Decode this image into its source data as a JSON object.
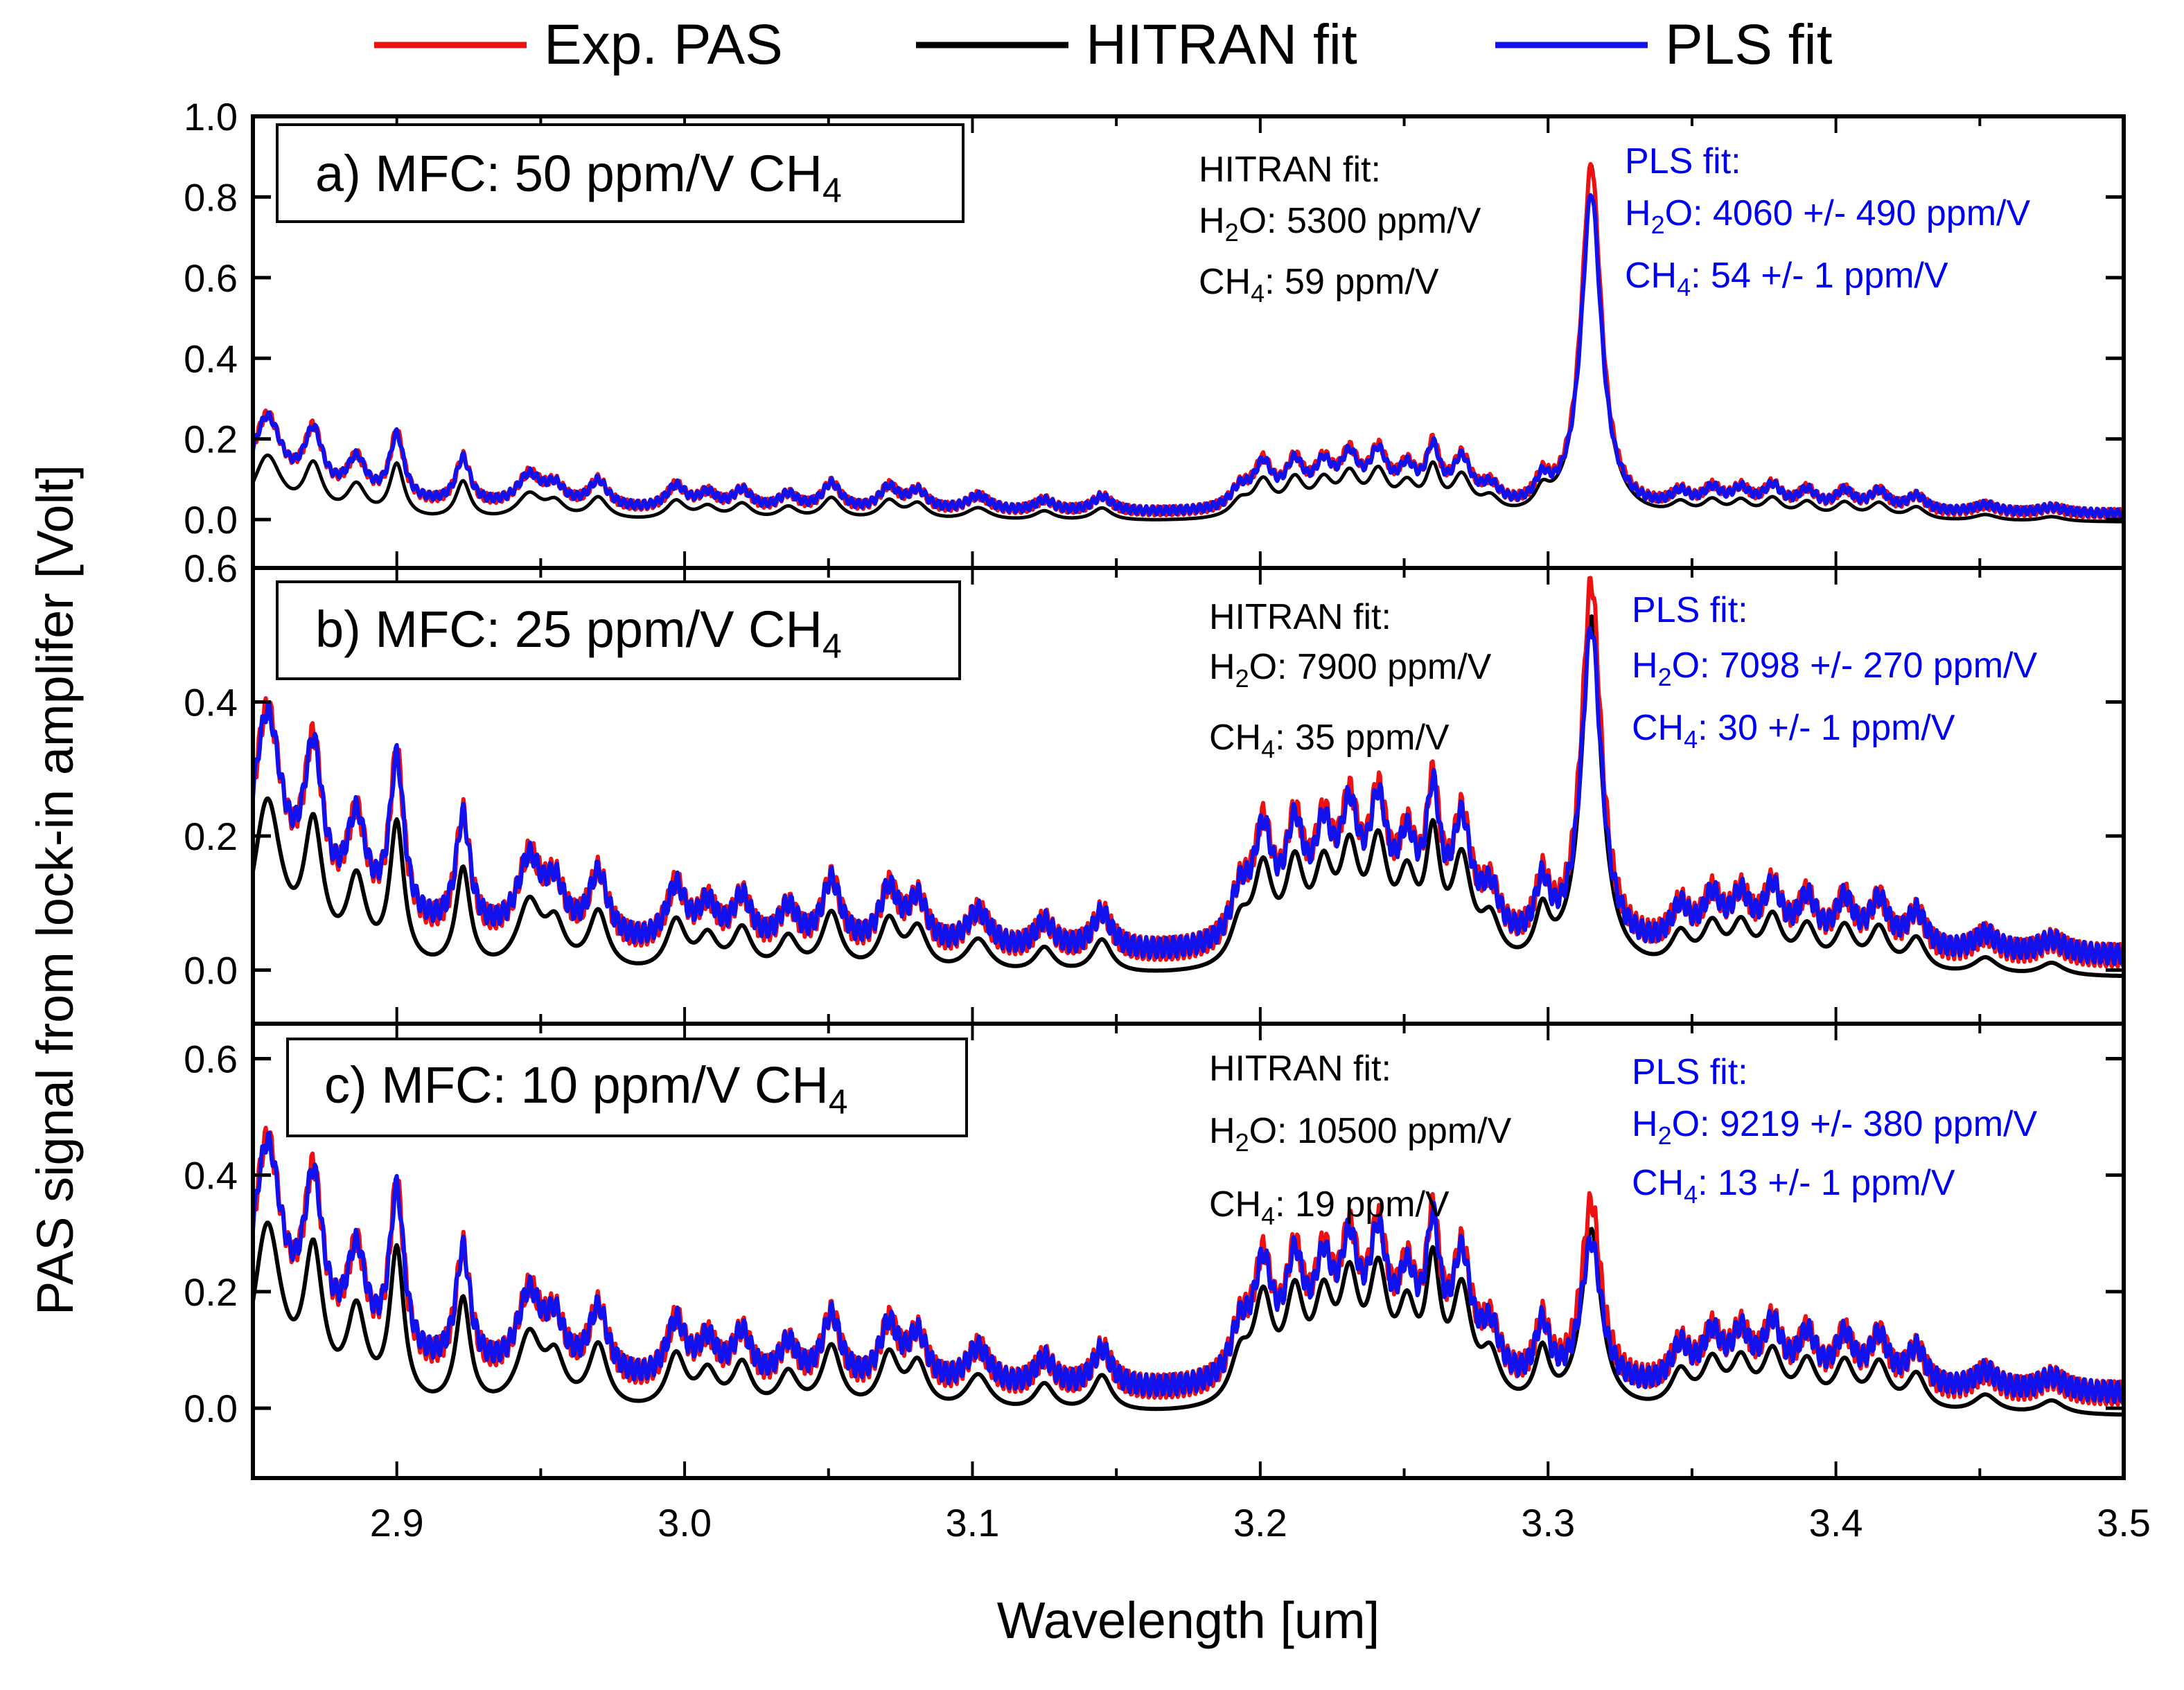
{
  "chart_data": {
    "type": "line",
    "xlabel": "Wavelength [um]",
    "ylabel": "PAS signal from lock-in amplifer [Volt]",
    "xlim": [
      2.85,
      3.5
    ],
    "x_ticks": [
      "2.9",
      "3.0",
      "3.1",
      "3.2",
      "3.3",
      "3.4",
      "3.5"
    ],
    "colors": {
      "exp": "#ee1111",
      "hitran": "#000000",
      "pls": "#1111ee"
    },
    "legend": [
      {
        "key": "exp",
        "label": "Exp. PAS"
      },
      {
        "key": "hitran",
        "label": "HITRAN fit"
      },
      {
        "key": "pls",
        "label": "PLS fit"
      }
    ],
    "panels": [
      {
        "label_prefix": "a) MFC: 50 ppm/V CH",
        "label_sub": "4",
        "ylim": [
          -0.12,
          1.0
        ],
        "y_ticks": [
          "0.0",
          "0.2",
          "0.4",
          "0.6",
          "0.8",
          "1.0"
        ],
        "hitran": {
          "title": "HITRAN fit:",
          "h2o_unit": ": 5300 ppm/V",
          "ch4_unit": ": 59 ppm/V"
        },
        "pls": {
          "title": "PLS fit:",
          "h2o_unit": ": 4060 +/- 490 ppm/V",
          "ch4_unit": ": 54 +/- 1 ppm/V"
        },
        "scale": {
          "water": 1.0,
          "ch4": 0.86,
          "hitran_water": 0.58,
          "hitran_ch4": 0.88,
          "pls_ch4": 0.79
        }
      },
      {
        "label_prefix": "b) MFC: 25 ppm/V CH",
        "label_sub": "4",
        "ylim": [
          -0.08,
          0.6
        ],
        "y_ticks": [
          "0.0",
          "0.2",
          "0.4",
          "0.6"
        ],
        "hitran": {
          "title": "HITRAN fit:",
          "h2o_unit": ": 7900 ppm/V",
          "ch4_unit": ": 35 ppm/V"
        },
        "pls": {
          "title": "PLS fit:",
          "h2o_unit": ": 7098 +/- 270 ppm/V",
          "ch4_unit": ": 30 +/- 1 ppm/V"
        },
        "scale": {
          "water": 1.5,
          "ch4": 0.55,
          "hitran_water": 0.62,
          "hitran_ch4": 0.53,
          "pls_ch4": 0.48
        }
      },
      {
        "label_prefix": "c) MFC: 10 ppm/V CH",
        "label_sub": "4",
        "ylim": [
          -0.12,
          0.66
        ],
        "y_ticks": [
          "0.0",
          "0.2",
          "0.4",
          "0.6"
        ],
        "hitran": {
          "title": "HITRAN fit:",
          "h2o_unit": ": 10500 ppm/V",
          "ch4_unit": ": 19 ppm/V"
        },
        "pls": {
          "title": "PLS fit:",
          "h2o_unit": ": 9219 +/- 380 ppm/V",
          "ch4_unit": ": 13 +/- 1 ppm/V"
        },
        "scale": {
          "water": 1.78,
          "ch4": 0.32,
          "hitran_water": 0.65,
          "hitran_ch4": 0.31,
          "pls_ch4": 0.25
        }
      }
    ],
    "water_lines": [
      [
        2.855,
        0.2,
        0.006
      ],
      [
        2.871,
        0.16,
        0.004
      ],
      [
        2.886,
        0.1,
        0.004
      ],
      [
        2.9,
        0.17,
        0.003
      ],
      [
        2.923,
        0.12,
        0.003
      ],
      [
        2.946,
        0.08,
        0.005
      ],
      [
        2.955,
        0.05,
        0.004
      ],
      [
        2.97,
        0.07,
        0.004
      ],
      [
        2.997,
        0.06,
        0.004
      ],
      [
        3.008,
        0.04,
        0.004
      ],
      [
        3.02,
        0.05,
        0.004
      ],
      [
        3.036,
        0.04,
        0.004
      ],
      [
        3.051,
        0.07,
        0.004
      ],
      [
        3.071,
        0.06,
        0.004
      ],
      [
        3.081,
        0.05,
        0.004
      ],
      [
        3.102,
        0.04,
        0.005
      ],
      [
        3.125,
        0.03,
        0.004
      ],
      [
        3.145,
        0.04,
        0.004
      ],
      [
        3.193,
        0.05,
        0.004
      ],
      [
        3.201,
        0.11,
        0.004
      ],
      [
        3.212,
        0.11,
        0.004
      ],
      [
        3.222,
        0.1,
        0.004
      ],
      [
        3.231,
        0.12,
        0.004
      ],
      [
        3.241,
        0.13,
        0.004
      ],
      [
        3.251,
        0.09,
        0.004
      ],
      [
        3.26,
        0.14,
        0.003
      ],
      [
        3.27,
        0.12,
        0.004
      ],
      [
        3.28,
        0.05,
        0.004
      ],
      [
        3.298,
        0.06,
        0.003
      ],
      [
        3.346,
        0.04,
        0.004
      ],
      [
        3.357,
        0.05,
        0.004
      ],
      [
        3.367,
        0.05,
        0.004
      ],
      [
        3.378,
        0.06,
        0.004
      ],
      [
        3.39,
        0.05,
        0.004
      ],
      [
        3.403,
        0.05,
        0.004
      ],
      [
        3.415,
        0.05,
        0.004
      ],
      [
        3.428,
        0.04,
        0.004
      ],
      [
        3.452,
        0.02,
        0.005
      ],
      [
        3.475,
        0.015,
        0.005
      ]
    ],
    "ch4_peak": [
      3.315,
      0.82,
      0.0042
    ]
  }
}
